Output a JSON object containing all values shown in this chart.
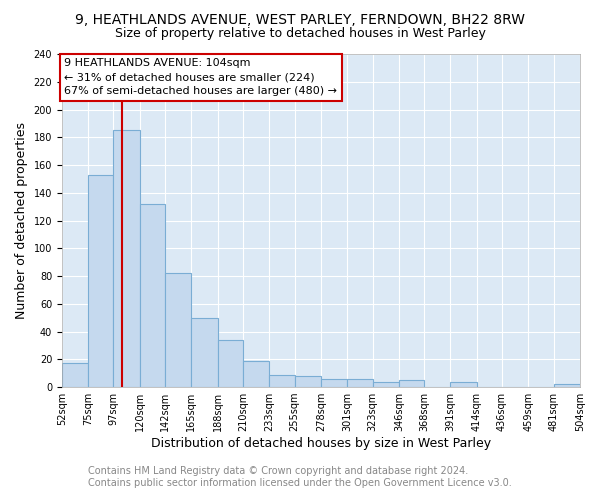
{
  "title_line1": "9, HEATHLANDS AVENUE, WEST PARLEY, FERNDOWN, BH22 8RW",
  "title_line2": "Size of property relative to detached houses in West Parley",
  "xlabel": "Distribution of detached houses by size in West Parley",
  "ylabel": "Number of detached properties",
  "bin_labels": [
    "52sqm",
    "75sqm",
    "97sqm",
    "120sqm",
    "142sqm",
    "165sqm",
    "188sqm",
    "210sqm",
    "233sqm",
    "255sqm",
    "278sqm",
    "301sqm",
    "323sqm",
    "346sqm",
    "368sqm",
    "391sqm",
    "414sqm",
    "436sqm",
    "459sqm",
    "481sqm",
    "504sqm"
  ],
  "bin_edges": [
    52,
    75,
    97,
    120,
    142,
    165,
    188,
    210,
    233,
    255,
    278,
    301,
    323,
    346,
    368,
    391,
    414,
    436,
    459,
    481,
    504
  ],
  "bar_heights": [
    17,
    153,
    185,
    132,
    82,
    50,
    34,
    19,
    9,
    8,
    6,
    6,
    4,
    5,
    0,
    4,
    0,
    0,
    0,
    2
  ],
  "bar_color": "#c5d9ee",
  "bar_edge_color": "#7aadd4",
  "vline_x": 104,
  "vline_color": "#cc0000",
  "annotation_text": "9 HEATHLANDS AVENUE: 104sqm\n← 31% of detached houses are smaller (224)\n67% of semi-detached houses are larger (480) →",
  "annotation_box_color": "#ffffff",
  "annotation_box_edge": "#cc0000",
  "ylim": [
    0,
    240
  ],
  "yticks": [
    0,
    20,
    40,
    60,
    80,
    100,
    120,
    140,
    160,
    180,
    200,
    220,
    240
  ],
  "footer_line1": "Contains HM Land Registry data © Crown copyright and database right 2024.",
  "footer_line2": "Contains public sector information licensed under the Open Government Licence v3.0.",
  "fig_background_color": "#ffffff",
  "plot_background": "#dce9f5",
  "title_fontsize": 10,
  "subtitle_fontsize": 9,
  "axis_label_fontsize": 9,
  "tick_fontsize": 7,
  "annotation_fontsize": 8,
  "footer_fontsize": 7
}
